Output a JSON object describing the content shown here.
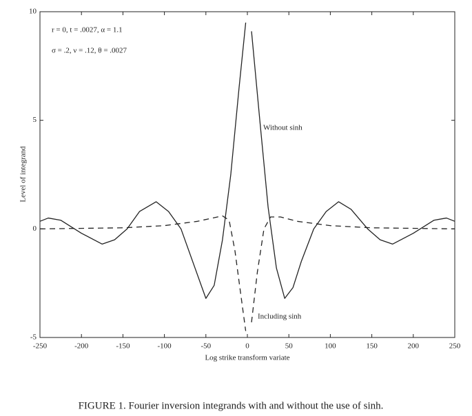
{
  "chart_data": {
    "type": "line",
    "x_label": "Log strike transform variate",
    "y_label": "Level of integrand",
    "caption": "FIGURE 1. Fourier inversion integrands with and without the use of sinh.",
    "annotations": [
      "r = 0, t = .0027, α = 1.1",
      "σ = .2, ν = .12, θ = .0027"
    ],
    "xlim": [
      -250,
      250
    ],
    "xticks": [
      -250,
      -200,
      -150,
      -100,
      -50,
      0,
      50,
      100,
      150,
      200,
      250
    ],
    "ylim": [
      -5,
      10
    ],
    "yticks": [
      -5,
      0,
      5,
      10
    ],
    "series": [
      {
        "name": "Without sinh",
        "color": "#222222",
        "dash": "solid",
        "x": [
          -250,
          -240,
          -225,
          -200,
          -175,
          -160,
          -145,
          -130,
          -110,
          -95,
          -80,
          -65,
          -50,
          -40,
          -30,
          -20,
          -10,
          -2,
          1,
          5,
          15,
          25,
          35,
          45,
          55,
          65,
          80,
          95,
          110,
          125,
          145,
          160,
          175,
          200,
          225,
          240,
          250
        ],
        "values": [
          0.35,
          0.5,
          0.4,
          -0.2,
          -0.7,
          -0.5,
          0,
          0.8,
          1.25,
          0.8,
          0,
          -1.6,
          -3.2,
          -2.6,
          -0.5,
          2.5,
          6.5,
          9.5,
          null,
          9.1,
          5,
          1,
          -1.8,
          -3.2,
          -2.7,
          -1.5,
          0,
          0.8,
          1.25,
          0.9,
          0,
          -0.5,
          -0.7,
          -0.2,
          0.4,
          0.5,
          0.35
        ]
      },
      {
        "name": "Including sinh",
        "color": "#222222",
        "dash": "dashed",
        "x": [
          -250,
          -150,
          -100,
          -60,
          -30,
          -22,
          -15,
          -8,
          -2,
          1,
          5,
          12,
          20,
          28,
          40,
          60,
          100,
          150,
          250
        ],
        "values": [
          0,
          0.05,
          0.15,
          0.35,
          0.6,
          0.4,
          -1,
          -3,
          -4.7,
          null,
          -4.3,
          -2,
          0,
          0.55,
          0.55,
          0.35,
          0.15,
          0.05,
          0
        ]
      }
    ]
  }
}
